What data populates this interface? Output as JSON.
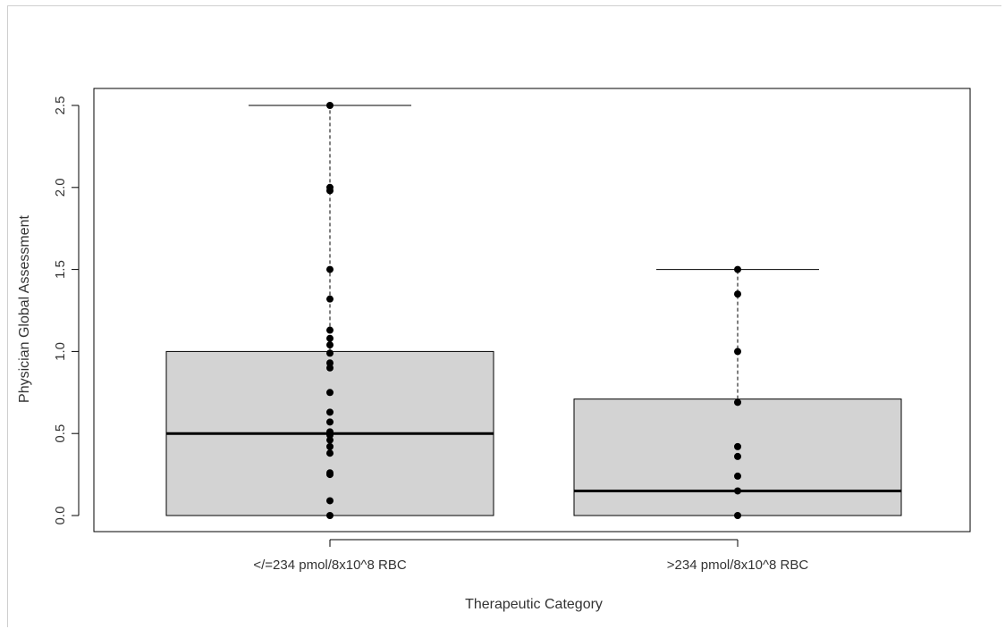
{
  "chart_data": {
    "type": "box",
    "title": "",
    "xlabel": "Therapeutic Category",
    "ylabel": "Physician Global Assessment",
    "ylim": [
      -0.1,
      2.6
    ],
    "yticks": [
      "0.0",
      "0.5",
      "1.0",
      "1.5",
      "2.0",
      "2.5"
    ],
    "categories": [
      "</=234 pmol/8x10^8 RBC",
      ">234 pmol/8x10^8 RBC"
    ],
    "boxes": [
      {
        "whisker_low": 0.0,
        "q1": 0.0,
        "median": 0.5,
        "q3": 1.0,
        "whisker_high": 2.5,
        "points": [
          0.0,
          0.09,
          0.25,
          0.26,
          0.38,
          0.42,
          0.46,
          0.49,
          0.51,
          0.57,
          0.63,
          0.75,
          0.9,
          0.93,
          0.99,
          1.04,
          1.08,
          1.13,
          1.32,
          1.5,
          1.98,
          2.0,
          2.5
        ]
      },
      {
        "whisker_low": 0.0,
        "q1": 0.0,
        "median": 0.15,
        "q3": 0.71,
        "whisker_high": 1.5,
        "points": [
          0.0,
          0.15,
          0.24,
          0.36,
          0.42,
          0.69,
          1.0,
          1.35,
          1.5
        ]
      }
    ],
    "colors": {
      "box_fill": "#d3d3d3",
      "stroke": "#000000",
      "points": "#000000"
    },
    "grid": false,
    "legend": "none"
  }
}
